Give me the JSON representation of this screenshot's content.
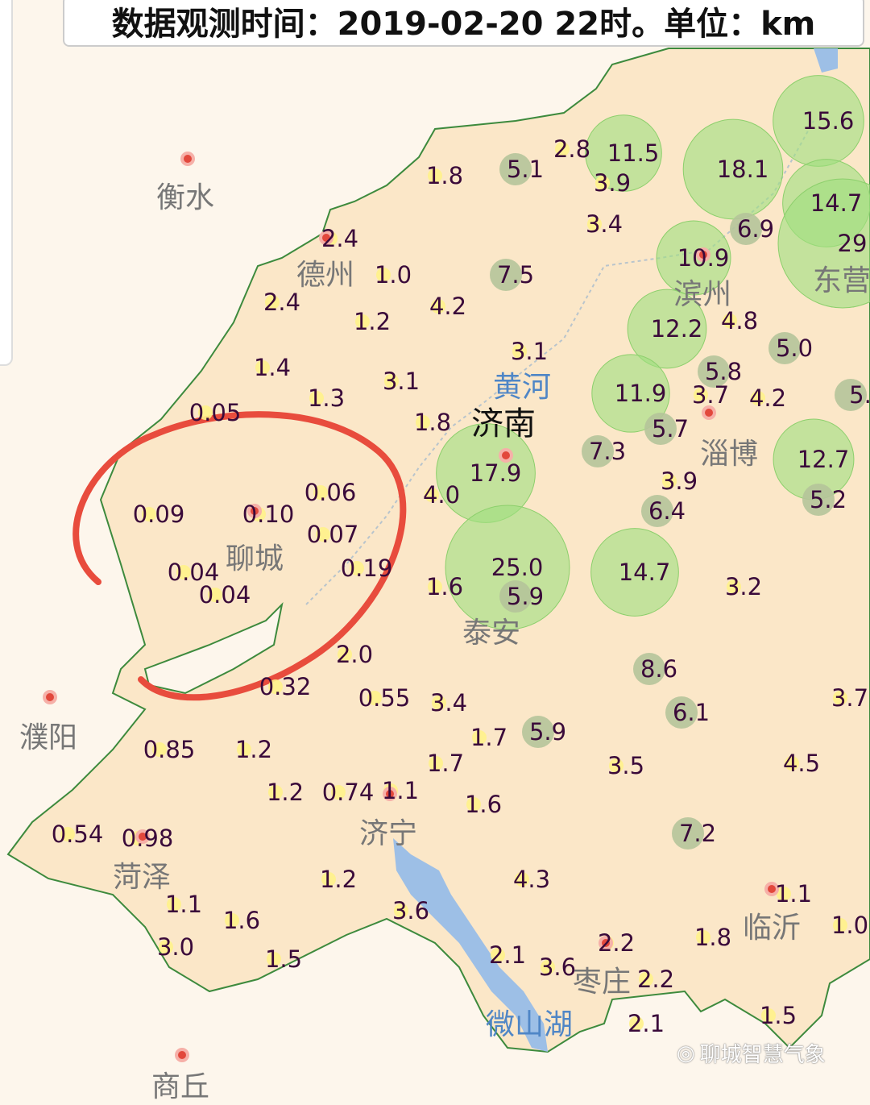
{
  "header": {
    "title": "数据观测时间：2019-02-20 22时。单位：km"
  },
  "legend_colors": {
    "land": "#fbe7c8",
    "outside": "#fdf6ec",
    "large": "#9fe07e",
    "medium": "#b5c49a",
    "small": "#fff28a",
    "annotation": "#e84c3d",
    "water": "#9dbfe6"
  },
  "cities": [
    {
      "name": "衡水",
      "type": "city"
    },
    {
      "name": "德州",
      "type": "city"
    },
    {
      "name": "滨州",
      "type": "city"
    },
    {
      "name": "东营",
      "type": "city"
    },
    {
      "name": "黄河",
      "type": "water"
    },
    {
      "name": "济南",
      "type": "capital"
    },
    {
      "name": "淄博",
      "type": "city"
    },
    {
      "name": "聊城",
      "type": "city"
    },
    {
      "name": "泰安",
      "type": "city"
    },
    {
      "name": "濮阳",
      "type": "city"
    },
    {
      "name": "济宁",
      "type": "city"
    },
    {
      "name": "菏泽",
      "type": "city"
    },
    {
      "name": "临沂",
      "type": "city"
    },
    {
      "name": "枣庄",
      "type": "city"
    },
    {
      "name": "微山湖",
      "type": "water"
    },
    {
      "name": "商丘",
      "type": "city"
    }
  ],
  "stations": [
    "1.8",
    "5.1",
    "2.8",
    "11.5",
    "3.9",
    "15.6",
    "18.1",
    "14.7",
    "29",
    "6.9",
    "3.4",
    "2.4",
    "1.0",
    "7.5",
    "10.9",
    "2.4",
    "4.2",
    "12.2",
    "4.8",
    "1.2",
    "5.0",
    "1.4",
    "3.1",
    "3.1",
    "5.8",
    "1.3",
    "11.9",
    "3.7",
    "4.2",
    "5.",
    "0.05",
    "1.8",
    "5.7",
    "7.3",
    "3.9",
    "17.9",
    "12.7",
    "0.06",
    "4.0",
    "6.4",
    "5.2",
    "0.09",
    "0.10",
    "0.07",
    "25.0",
    "14.7",
    "0.19",
    "0.04",
    "5.9",
    "1.6",
    "3.2",
    "0.04",
    "2.0",
    "8.6",
    "0.32",
    "0.55",
    "3.4",
    "6.1",
    "3.7",
    "5.9",
    "1.7",
    "1.7",
    "3.5",
    "4.5",
    "0.85",
    "1.2",
    "1.2",
    "0.74",
    "1.1",
    "1.6",
    "0.54",
    "0.98",
    "7.2",
    "1.1",
    "1.2",
    "4.3",
    "1.1",
    "1.6",
    "3.6",
    "1.8",
    "1.0",
    "2.2",
    "3.0",
    "1.5",
    "2.1",
    "3.6",
    "2.2",
    "2.1",
    "1.5"
  ],
  "watermark": {
    "icon": "wechat-icon",
    "text": "聊城智慧气象"
  }
}
